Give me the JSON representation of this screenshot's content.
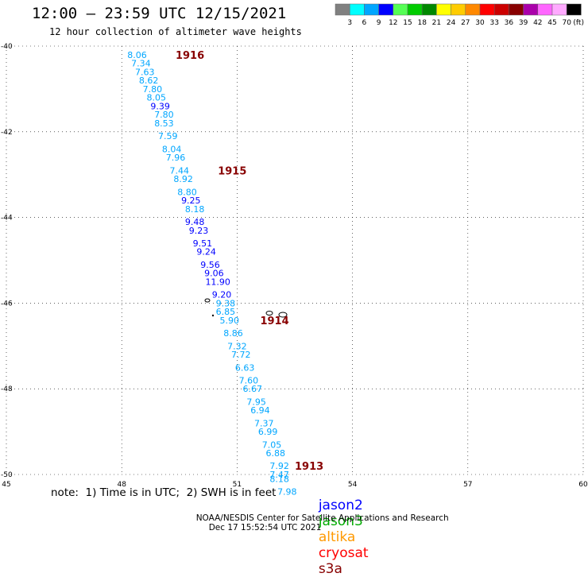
{
  "header": {
    "title": "12:00 – 23:59 UTC 12/15/2021",
    "subtitle": "12 hour collection of altimeter wave heights"
  },
  "legend": {
    "unit": "(ft)",
    "entries": [
      {
        "color": "#808080",
        "label": "3"
      },
      {
        "color": "#00ffff",
        "label": "6"
      },
      {
        "color": "#00a6ff",
        "label": "9"
      },
      {
        "color": "#0000ff",
        "label": "12"
      },
      {
        "color": "#55ff55",
        "label": "15"
      },
      {
        "color": "#00cc00",
        "label": "18"
      },
      {
        "color": "#008800",
        "label": "21"
      },
      {
        "color": "#ffff00",
        "label": "24"
      },
      {
        "color": "#ffcc00",
        "label": "27"
      },
      {
        "color": "#ff8800",
        "label": "30"
      },
      {
        "color": "#ff0000",
        "label": "33"
      },
      {
        "color": "#cc0000",
        "label": "36"
      },
      {
        "color": "#880000",
        "label": "39"
      },
      {
        "color": "#aa00aa",
        "label": "42"
      },
      {
        "color": "#ff66ff",
        "label": "45"
      },
      {
        "color": "#ffaaff",
        "label": "70"
      },
      {
        "color": "#000000",
        "label": ""
      }
    ]
  },
  "chart_data": {
    "type": "scatter",
    "title": "12:00 – 23:59 UTC 12/15/2021",
    "subtitle": "12 hour collection of altimeter wave heights",
    "xlim": [
      45,
      60
    ],
    "ylim": [
      -50,
      -40
    ],
    "xticks": [
      45,
      48,
      51,
      54,
      57,
      60
    ],
    "yticks": [
      -40,
      -42,
      -44,
      -46,
      -48,
      -50
    ],
    "grid": true,
    "hour_labels": [
      {
        "label": "1916",
        "x": 49.4,
        "y": -40.2
      },
      {
        "label": "1915",
        "x": 50.5,
        "y": -42.9
      },
      {
        "label": "1914",
        "x": 51.6,
        "y": -46.4
      },
      {
        "label": "1913",
        "x": 52.5,
        "y": -49.8
      }
    ],
    "track": [
      {
        "label": "8.06",
        "x": 48.4,
        "y": -40.2,
        "color": "#00a6ff"
      },
      {
        "label": "7.34",
        "x": 48.5,
        "y": -40.4,
        "color": "#00a6ff"
      },
      {
        "label": "7.63",
        "x": 48.6,
        "y": -40.6,
        "color": "#00a6ff"
      },
      {
        "label": "8.62",
        "x": 48.7,
        "y": -40.8,
        "color": "#00a6ff"
      },
      {
        "label": "7.80",
        "x": 48.8,
        "y": -41.0,
        "color": "#00a6ff"
      },
      {
        "label": "8.05",
        "x": 48.9,
        "y": -41.2,
        "color": "#00a6ff"
      },
      {
        "label": "9.39",
        "x": 49.0,
        "y": -41.4,
        "color": "#0000ff"
      },
      {
        "label": "7.80",
        "x": 49.1,
        "y": -41.6,
        "color": "#00a6ff"
      },
      {
        "label": "8.53",
        "x": 49.1,
        "y": -41.8,
        "color": "#00a6ff"
      },
      {
        "label": "7.59",
        "x": 49.2,
        "y": -42.1,
        "color": "#00a6ff"
      },
      {
        "label": "8.04",
        "x": 49.3,
        "y": -42.4,
        "color": "#00a6ff"
      },
      {
        "label": "7.96",
        "x": 49.4,
        "y": -42.6,
        "color": "#00a6ff"
      },
      {
        "label": "7.44",
        "x": 49.5,
        "y": -42.9,
        "color": "#00a6ff"
      },
      {
        "label": "8.92",
        "x": 49.6,
        "y": -43.1,
        "color": "#00a6ff"
      },
      {
        "label": "8.80",
        "x": 49.7,
        "y": -43.4,
        "color": "#00a6ff"
      },
      {
        "label": "9.25",
        "x": 49.8,
        "y": -43.6,
        "color": "#0000ff"
      },
      {
        "label": "8.18",
        "x": 49.9,
        "y": -43.8,
        "color": "#00a6ff"
      },
      {
        "label": "9.48",
        "x": 49.9,
        "y": -44.1,
        "color": "#0000ff"
      },
      {
        "label": "9.23",
        "x": 50.0,
        "y": -44.3,
        "color": "#0000ff"
      },
      {
        "label": "9.51",
        "x": 50.1,
        "y": -44.6,
        "color": "#0000ff"
      },
      {
        "label": "9.24",
        "x": 50.2,
        "y": -44.8,
        "color": "#0000ff"
      },
      {
        "label": "9.56",
        "x": 50.3,
        "y": -45.1,
        "color": "#0000ff"
      },
      {
        "label": "9.06",
        "x": 50.4,
        "y": -45.3,
        "color": "#0000ff"
      },
      {
        "label": "11.90",
        "x": 50.5,
        "y": -45.5,
        "color": "#0000ff"
      },
      {
        "label": "9.20",
        "x": 50.6,
        "y": -45.8,
        "color": "#0000ff"
      },
      {
        "label": "9.38",
        "x": 50.7,
        "y": -46.0,
        "color": "#00a6ff"
      },
      {
        "label": "6.85",
        "x": 50.7,
        "y": -46.2,
        "color": "#00a6ff"
      },
      {
        "label": "5.90",
        "x": 50.8,
        "y": -46.4,
        "color": "#00a6ff"
      },
      {
        "label": "8.86",
        "x": 50.9,
        "y": -46.7,
        "color": "#00a6ff"
      },
      {
        "label": "7.32",
        "x": 51.0,
        "y": -47.0,
        "color": "#00a6ff"
      },
      {
        "label": "7.72",
        "x": 51.1,
        "y": -47.2,
        "color": "#00a6ff"
      },
      {
        "label": "6.63",
        "x": 51.2,
        "y": -47.5,
        "color": "#00a6ff"
      },
      {
        "label": "7.60",
        "x": 51.3,
        "y": -47.8,
        "color": "#00a6ff"
      },
      {
        "label": "6.67",
        "x": 51.4,
        "y": -48.0,
        "color": "#00a6ff"
      },
      {
        "label": "7.95",
        "x": 51.5,
        "y": -48.3,
        "color": "#00a6ff"
      },
      {
        "label": "6.94",
        "x": 51.6,
        "y": -48.5,
        "color": "#00a6ff"
      },
      {
        "label": "7.37",
        "x": 51.7,
        "y": -48.8,
        "color": "#00a6ff"
      },
      {
        "label": "6.99",
        "x": 51.8,
        "y": -49.0,
        "color": "#00a6ff"
      },
      {
        "label": "7.05",
        "x": 51.9,
        "y": -49.3,
        "color": "#00a6ff"
      },
      {
        "label": "6.88",
        "x": 52.0,
        "y": -49.5,
        "color": "#00a6ff"
      },
      {
        "label": "7.92",
        "x": 52.1,
        "y": -49.8,
        "color": "#00a6ff"
      },
      {
        "label": "7.47",
        "x": 52.1,
        "y": -50.0,
        "color": "#00a6ff"
      },
      {
        "label": "8.18",
        "x": 52.1,
        "y": -50.1,
        "color": "#00a6ff"
      },
      {
        "label": "7.98",
        "x": 52.3,
        "y": -50.4,
        "color": "#00a6ff"
      }
    ]
  },
  "note": "note:  1) Time is in UTC;  2) SWH is in feet",
  "satellites": [
    {
      "name": "jason2",
      "color": "#0000ff"
    },
    {
      "name": "jason3",
      "color": "#00aa00"
    },
    {
      "name": "altika",
      "color": "#ff9900"
    },
    {
      "name": "cryosat",
      "color": "#ff0000"
    },
    {
      "name": "s3a",
      "color": "#880000"
    }
  ],
  "footer": {
    "credit": "NOAA/NESDIS Center for Satellite Applications and Research",
    "timestamp": "Dec 17 15:52:54 UTC 2021"
  }
}
